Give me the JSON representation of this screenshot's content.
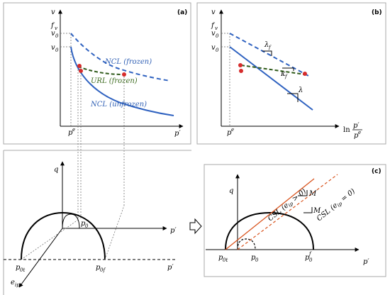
{
  "panels": {
    "a": {
      "tag": "(a)",
      "y_axis": "v",
      "y_labels": [
        "f",
        "v",
        "v"
      ],
      "y_subs": [
        "v",
        "0",
        "0"
      ],
      "x_axis": "p′",
      "x_tick": "p",
      "x_tick_sup": "e",
      "curves": {
        "ncl_frozen": "NCL (frozen)",
        "url_frozen": "URL (frozen)",
        "ncl_unfrozen": "NCL (unfrozen)"
      }
    },
    "b": {
      "tag": "(b)",
      "y_axis": "v",
      "y_labels": [
        "f",
        "v",
        "v"
      ],
      "y_subs": [
        "v",
        "0",
        "0"
      ],
      "x_tick": "p",
      "x_tick_sup": "e",
      "x_axis_prefix": "ln",
      "x_axis_num": "p′",
      "x_axis_den": "p",
      "slopes": {
        "lambda_f": "λ",
        "lambda_f_sub": "f",
        "kappa_f": "κ",
        "kappa_f_sub": "f",
        "lambda": "λ"
      }
    },
    "c": {
      "tag": "(c)",
      "y_axis": "q",
      "x_axis": "p′",
      "x_labels": [
        "p",
        "p",
        "p"
      ],
      "x_subs": [
        "0t",
        "0",
        "0"
      ],
      "x_sup_last": "f",
      "csl_upper": "CSL (e",
      "csl_upper_sub": "ip",
      "csl_upper_tail": " > 0)",
      "csl_lower": "CSL (e",
      "csl_lower_sub": "ip",
      "csl_lower_tail": " = 0)",
      "slope_m": "M"
    },
    "left_3d": {
      "q": "q",
      "p_axis": "p′",
      "p_lower": "p′",
      "p0": "p",
      "p0_sub": "0",
      "p0t": "p",
      "p0t_sub": "0t",
      "p0f": "p",
      "p0f_sub": "0f",
      "e_axis": "e",
      "e_sub": "ip"
    }
  },
  "colors": {
    "blue": "#2f62c0",
    "green": "#2f5a1a",
    "red": "#d62c2c",
    "orange": "#d9541e"
  }
}
